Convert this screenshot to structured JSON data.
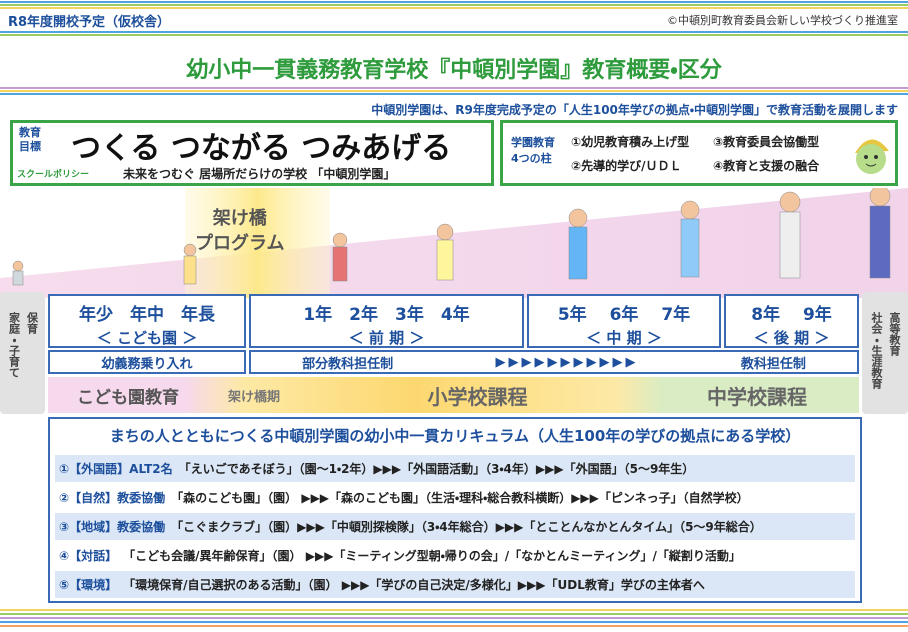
{
  "header": {
    "badge": "R8年度開校予定（仮校舎）",
    "copyright": "©中頓別町教育委員会新しい学校づくり推進室",
    "title": "幼小中一貫義務教育学校『中頓別学園』教育概要・区分",
    "subtitle": "中頓別学園は、R9年度完成予定の「人生100年学びの拠点・中頓別学園」で教育活動を展開します"
  },
  "goal": {
    "label": [
      "教育",
      "目標"
    ],
    "motto": "つくる つながる つみあげる",
    "policy_label": "スクールポリシー",
    "policy": "未来をつむぐ 居場所だらけの学校 「中頓別学園」"
  },
  "pillars": {
    "label": [
      "学園教育",
      "4つの柱"
    ],
    "items": [
      "①幼児教育積み上げ型",
      "③教育委員会協働型",
      "②先導的学び/ＵＤＬ",
      "④教育と支援の融合"
    ]
  },
  "bridge_program": [
    "架け橋",
    "プログラム"
  ],
  "side_left": [
    "家庭・子育て",
    "保育"
  ],
  "side_right": [
    "社会・生涯教育",
    "高等教育"
  ],
  "stages": [
    {
      "grades": "年少　年中　年長",
      "period": "＜ こども園 ＞"
    },
    {
      "grades": "1年　2年　3年　4年",
      "period": "＜ 前 期 ＞"
    },
    {
      "grades": "5年　 6年　 7年",
      "period": "＜ 中 期 ＞"
    },
    {
      "grades": "8年　 9年",
      "period": "＜ 後 期 ＞"
    }
  ],
  "teaching": {
    "left": "幼義務乗り入れ",
    "middle": "部分教科担任制",
    "arrows": "▶▶▶▶▶▶▶▶▶▶▶",
    "right": "教科担任制"
  },
  "courses": [
    "こども園教育",
    "架け橋期",
    "小学校課程",
    "中学校課程"
  ],
  "curriculum": {
    "title": "まちの人とともにつくる中頓別学園の幼小中一貫カリキュラム（人生100年の学びの拠点にある学校）",
    "rows": [
      {
        "label": "①【外国語】ALT2名",
        "text": "「えいごであそぼう」（園～1・2年）▶▶▶「外国語活動」（3・4年）▶▶▶「外国語」（5～9年生）"
      },
      {
        "label": "②【自然】教委協働",
        "text": "「森のこども園」（園） ▶▶▶「森のこども園」（生活・理科・総合教科横断）▶▶▶「ピンネっ子」（自然学校）"
      },
      {
        "label": "③【地域】教委協働",
        "text": "「こぐまクラブ」（園）▶▶▶「中頓別探検隊」（3・4年総合）▶▶▶「とことんなかとんタイム」（5～9年総合）"
      },
      {
        "label": "④【対話】",
        "text": "「こども会議/異年齢保育」（園） ▶▶▶「ミーティング型朝・帰りの会」/「なかとんミーティング」/「縦割り活動」"
      },
      {
        "label": "⑤【環境】",
        "text": "「環境保育/自己選択のある活動」（園） ▶▶▶「学びの自己決定/多様化」▶▶▶「UDL教育」学びの主体者へ"
      }
    ]
  }
}
